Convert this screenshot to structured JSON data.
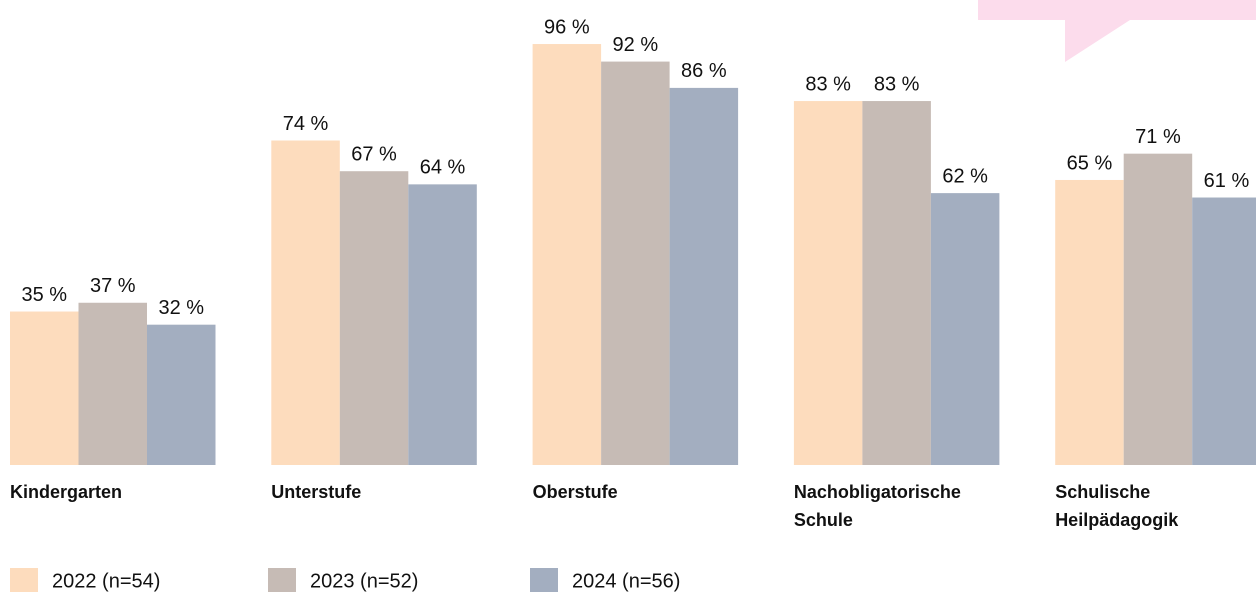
{
  "chart_data": {
    "type": "bar",
    "categories": [
      "Kindergarten",
      "Unterstufe",
      "Oberstufe",
      "Nachobligatorische Schule",
      "Schulische Heilpädagogik"
    ],
    "series": [
      {
        "name": "2022 (n=54)",
        "color": "#fddcbd",
        "values": [
          35,
          74,
          96,
          83,
          65
        ],
        "value_labels": [
          "35 %",
          "74 %",
          "96 %",
          "83 %",
          "65 %"
        ]
      },
      {
        "name": "2023 (n=52)",
        "color": "#c6bbb5",
        "values": [
          37,
          67,
          92,
          83,
          71
        ],
        "value_labels": [
          "37 %",
          "67 %",
          "92 %",
          "83 %",
          "71 %"
        ]
      },
      {
        "name": "2024 (n=56)",
        "color": "#a3aec0",
        "values": [
          32,
          64,
          86,
          62,
          61
        ],
        "value_labels": [
          "32 %",
          "64 %",
          "86 %",
          "62 %",
          "61 %"
        ]
      }
    ],
    "ylim": [
      0,
      100
    ],
    "legend": "bottom"
  }
}
